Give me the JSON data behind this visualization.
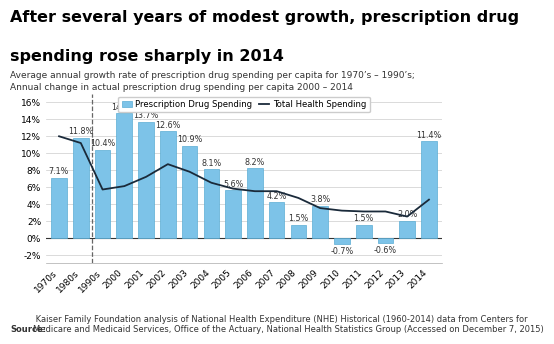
{
  "categories": [
    "1970s",
    "1980s",
    "1990s",
    "2000",
    "2001",
    "2002",
    "2003",
    "2004",
    "2005",
    "2006",
    "2007",
    "2008",
    "2009",
    "2010",
    "2011",
    "2012",
    "2013",
    "2014"
  ],
  "bar_values": [
    7.1,
    11.8,
    10.4,
    14.7,
    13.7,
    12.6,
    10.9,
    8.1,
    5.6,
    8.2,
    4.2,
    1.5,
    3.8,
    -0.7,
    1.5,
    -0.6,
    2.0,
    11.4
  ],
  "bar_labels": [
    "7.1%",
    "11.8%",
    "10.4%",
    "14.7%",
    "13.7%",
    "12.6%",
    "10.9%",
    "8.1%",
    "5.6%",
    "8.2%",
    "4.2%",
    "1.5%",
    "3.8%",
    "-0.7%",
    "1.5%",
    "-0.6%",
    "2.0%",
    "11.4%"
  ],
  "line_values": [
    12.0,
    11.2,
    5.7,
    6.1,
    7.2,
    8.7,
    7.8,
    6.5,
    5.8,
    5.5,
    5.5,
    4.7,
    3.5,
    3.2,
    3.1,
    3.1,
    2.5,
    4.5
  ],
  "bar_color": "#7DC3E8",
  "bar_edge_color": "#5aadd4",
  "line_color": "#1a2a3a",
  "dashed_line_after_index": 1,
  "title_line1": "After several years of modest growth, prescription drug",
  "title_line2": "spending rose sharply in 2014",
  "subtitle_line1": "Average annual growth rate of prescription drug spending per capita for 1970’s – 1990’s;",
  "subtitle_line2": "Annual change in actual prescription drug spending per capita 2000 – 2014",
  "legend_bar_label": "Prescription Drug Spending",
  "legend_line_label": "Total Health Spending",
  "ylim": [
    -3,
    17
  ],
  "yticks": [
    -2,
    0,
    2,
    4,
    6,
    8,
    10,
    12,
    14,
    16
  ],
  "source_bold": "Source:",
  "source_text": " Kaiser Family Foundation analysis of National Health Expenditure (NHE) Historical (1960-2014) data from Centers for\nMedicare and Medicaid Services, Office of the Actuary, National Health Statistics Group (Accessed on December 7, 2015)",
  "title_fontsize": 11.5,
  "subtitle_fontsize": 6.5,
  "axis_fontsize": 6.5,
  "label_fontsize": 5.8,
  "source_fontsize": 6.0
}
